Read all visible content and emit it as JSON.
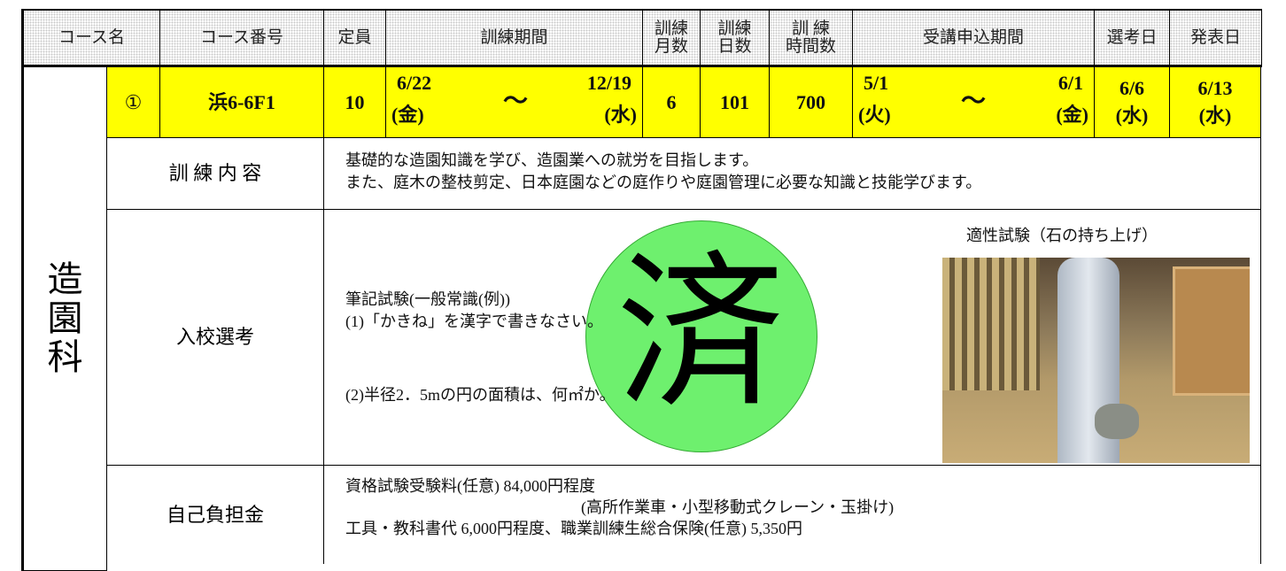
{
  "header": {
    "cells": [
      [
        "コース名"
      ],
      [
        "コース番号"
      ],
      [
        "定員"
      ],
      [
        "訓練期間"
      ],
      [
        "訓練",
        "月数"
      ],
      [
        "訓練",
        "日数"
      ],
      [
        "訓 練",
        "時間数"
      ],
      [
        "受講申込期間"
      ],
      [
        "選考日"
      ],
      [
        "発表日"
      ]
    ]
  },
  "department": [
    "造",
    "園",
    "科"
  ],
  "course": {
    "number": "①",
    "code": "浜6-6F1",
    "capacity": "10",
    "period": {
      "start": "6/22",
      "start_day": "(金)",
      "separator": "～",
      "end": "12/19",
      "end_day": "(水)"
    },
    "months": "6",
    "days": "101",
    "hours": "700",
    "application": {
      "start": "5/1",
      "start_day": "(火)",
      "separator": "～",
      "end": "6/1",
      "end_day": "(金)"
    },
    "selection_date": [
      "6/6",
      "(水)"
    ],
    "announcement_date": [
      "6/13",
      "(水)"
    ]
  },
  "content": {
    "label": "訓 練 内 容",
    "lines": [
      "基礎的な造園知識を学び、造園業への就労を目指します。",
      "また、庭木の整枝剪定、日本庭園などの庭作りや庭園管理に必要な知識と技能学びます。"
    ]
  },
  "selection": {
    "label": "入校選考",
    "lines": [
      "筆記試験(一般常識(例))",
      "(1)「かきね」を漢字で書きなさい。",
      "(2)半径2．5mの円の面積は、何㎡か。"
    ],
    "photo_caption": "適性試験（石の持ち上げ）",
    "stamp": "済"
  },
  "cost": {
    "label": "自己負担金",
    "lines": [
      "資格試験受験料(任意) 84,000円程度",
      "(高所作業車・小型移動式クレーン・玉掛け)",
      "工具・教科書代 6,000円程度、職業訓練生総合保険(任意) 5,350円"
    ]
  }
}
